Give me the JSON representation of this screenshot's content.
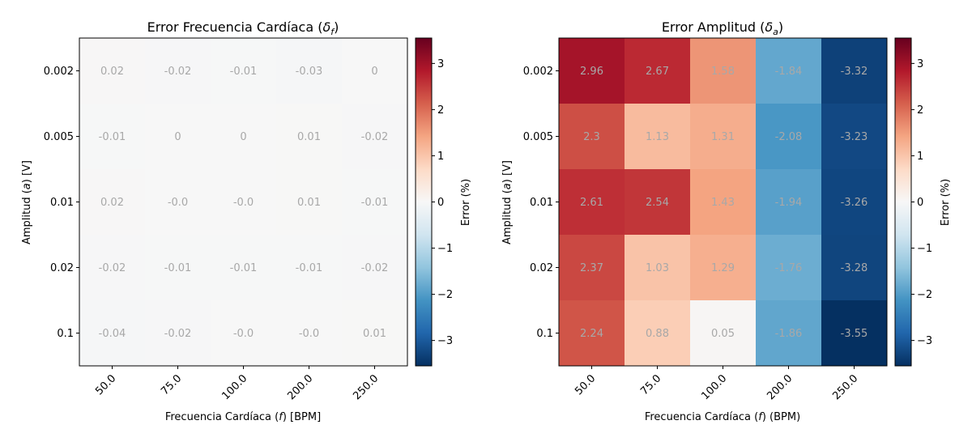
{
  "chart_data": [
    {
      "type": "heatmap",
      "title": "Error Frecuencia Cardíaca (δf)",
      "title_main": "Error Frecuencia Cardíaca (",
      "title_sym": "δ",
      "title_sub": "f",
      "title_close": ")",
      "xlabel": "Frecuencia Cardíaca (f) [BPM]",
      "xlabel_pre": "Frecuencia Cardíaca (",
      "xlabel_sym": "f",
      "xlabel_post": ") [BPM]",
      "ylabel": "Amplitud (a) [V]",
      "ylabel_pre": "Amplitud (",
      "ylabel_sym": "a",
      "ylabel_post": ") [V]",
      "x_categories": [
        "50.0",
        "75.0",
        "100.0",
        "200.0",
        "250.0"
      ],
      "y_categories": [
        "0.002",
        "0.005",
        "0.01",
        "0.02",
        "0.1"
      ],
      "values": [
        [
          0.02,
          -0.02,
          -0.01,
          -0.03,
          0.0
        ],
        [
          -0.01,
          0.0,
          0.0,
          0.01,
          -0.02
        ],
        [
          0.02,
          -0.0,
          -0.0,
          0.01,
          -0.01
        ],
        [
          -0.02,
          -0.01,
          -0.01,
          -0.01,
          -0.02
        ],
        [
          -0.04,
          -0.02,
          -0.0,
          -0.0,
          0.01
        ]
      ],
      "colorbar": {
        "label": "Error (%)",
        "colormap": "RdBu_r",
        "range": [
          -3.55,
          3.55
        ],
        "ticks": [
          -3,
          -2,
          -1,
          0,
          1,
          2,
          3
        ],
        "tick_labels": [
          "−3",
          "−2",
          "−1",
          "0",
          "1",
          "2",
          "3"
        ]
      },
      "annotation_color": "#a8a8a8"
    },
    {
      "type": "heatmap",
      "title": "Error Amplitud (δa)",
      "title_main": "Error Amplitud (",
      "title_sym": "δ",
      "title_sub": "a",
      "title_close": ")",
      "xlabel": "Frecuencia Cardíaca (f) (BPM)",
      "xlabel_pre": "Frecuencia Cardíaca (",
      "xlabel_sym": "f",
      "xlabel_post": ") (BPM)",
      "ylabel": "Amplitud (a) [V]",
      "ylabel_pre": "Amplitud (",
      "ylabel_sym": "a",
      "ylabel_post": ") [V]",
      "x_categories": [
        "50.0",
        "75.0",
        "100.0",
        "200.0",
        "250.0"
      ],
      "y_categories": [
        "0.002",
        "0.005",
        "0.01",
        "0.02",
        "0.1"
      ],
      "values": [
        [
          2.96,
          2.67,
          1.58,
          -1.84,
          -3.32
        ],
        [
          2.3,
          1.13,
          1.31,
          -2.08,
          -3.23
        ],
        [
          2.61,
          2.54,
          1.43,
          -1.94,
          -3.26
        ],
        [
          2.37,
          1.03,
          1.29,
          -1.76,
          -3.28
        ],
        [
          2.24,
          0.88,
          0.05,
          -1.86,
          -3.55
        ]
      ],
      "colorbar": {
        "label": "Error (%)",
        "colormap": "RdBu_r",
        "range": [
          -3.55,
          3.55
        ],
        "ticks": [
          -3,
          -2,
          -1,
          0,
          1,
          2,
          3
        ],
        "tick_labels": [
          "−3",
          "−2",
          "−1",
          "0",
          "1",
          "2",
          "3"
        ]
      },
      "annotation_color": "#a8a8a8"
    }
  ]
}
